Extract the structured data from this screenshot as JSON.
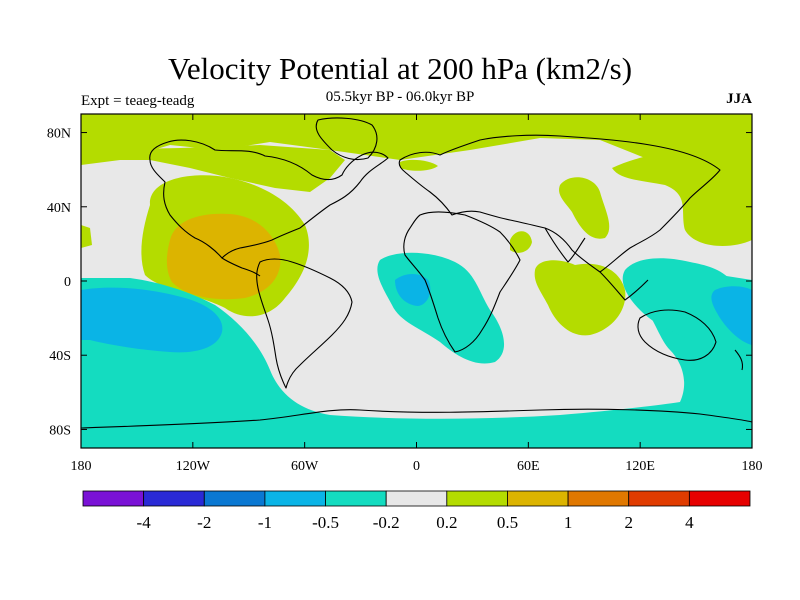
{
  "title": "Velocity Potential at 200 hPa (km2/s)",
  "subtitle": "05.5kyr BP - 06.0kyr BP",
  "experiment": "Expt = teaeg-teadg",
  "season": "JJA",
  "map": {
    "projection": "cylindrical equidistant",
    "lon_range": [
      -180,
      180
    ],
    "lat_range": [
      -90,
      90
    ],
    "background_color": "#e8e8e8",
    "lon_ticks": [
      {
        "value": -180,
        "label": "180"
      },
      {
        "value": -120,
        "label": "120W"
      },
      {
        "value": -60,
        "label": "60W"
      },
      {
        "value": 0,
        "label": "0"
      },
      {
        "value": 60,
        "label": "60E"
      },
      {
        "value": 120,
        "label": "120E"
      },
      {
        "value": 180,
        "label": "180"
      }
    ],
    "lat_ticks": [
      {
        "value": 80,
        "label": "80N"
      },
      {
        "value": 40,
        "label": "40N"
      },
      {
        "value": 0,
        "label": "0"
      },
      {
        "value": -40,
        "label": "40S"
      },
      {
        "value": -80,
        "label": "80S"
      }
    ]
  },
  "colorbar": {
    "colors": [
      "#7a12d6",
      "#2a2ad6",
      "#0a78d2",
      "#0ab4e6",
      "#14dcc0",
      "#e8e8e8",
      "#b4dc00",
      "#dcb400",
      "#e07800",
      "#e03c00",
      "#e60000"
    ],
    "labels": [
      "-4",
      "-2",
      "-1",
      "-0.5",
      "-0.2",
      "0.2",
      "0.5",
      "1",
      "2",
      "4"
    ]
  }
}
